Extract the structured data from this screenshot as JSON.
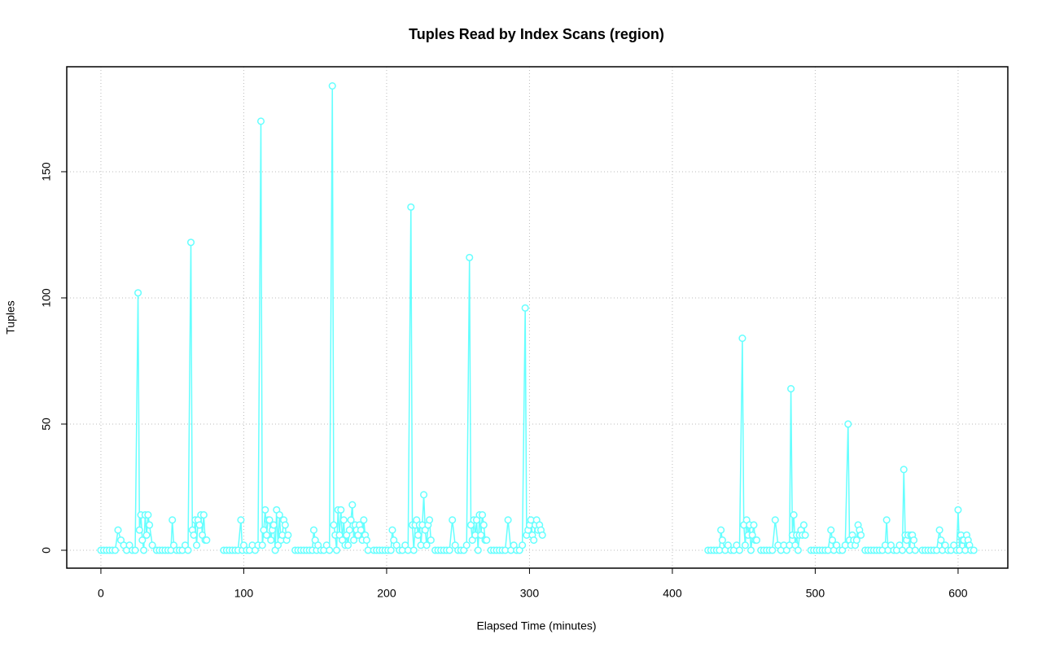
{
  "chart_data": {
    "type": "line",
    "title": "Tuples Read by Index Scans (region)",
    "x_label": "Elapsed Time (minutes)",
    "y_label": "Tuples",
    "xlim": [
      -23.9,
      634.8
    ],
    "ylim": [
      -7.1,
      191.6
    ],
    "xticks": [
      0,
      100,
      200,
      300,
      400,
      500,
      600
    ],
    "yticks": [
      0,
      50,
      100,
      150
    ],
    "grid": true,
    "series": [
      {
        "color": "#66ffff",
        "x": [
          0,
          2,
          4,
          6,
          8,
          10,
          12,
          14,
          16,
          18,
          20,
          22,
          24,
          26,
          27,
          28,
          29,
          30,
          31,
          32,
          33,
          34,
          36,
          37,
          39,
          41,
          43,
          45,
          47,
          49,
          50,
          51,
          53,
          55,
          57,
          59,
          61,
          63,
          64,
          65,
          66,
          67,
          68,
          69,
          70,
          71,
          72,
          73,
          74,
          75,
          86,
          88,
          90,
          92,
          94,
          96,
          98,
          99,
          100,
          102,
          104,
          106,
          108,
          110,
          112,
          113,
          114,
          115,
          116,
          117,
          118,
          119,
          120,
          121,
          122,
          123,
          124,
          125,
          126,
          127,
          128,
          129,
          130,
          131,
          134,
          136,
          138,
          140,
          142,
          144,
          146,
          148,
          149,
          150,
          151,
          152,
          154,
          156,
          158,
          160,
          162,
          163,
          164,
          165,
          166,
          167,
          168,
          169,
          170,
          171,
          172,
          173,
          174,
          175,
          176,
          177,
          178,
          179,
          180,
          181,
          182,
          183,
          184,
          185,
          186,
          187,
          190,
          191,
          193,
          195,
          197,
          199,
          201,
          203,
          204,
          205,
          207,
          209,
          211,
          213,
          215,
          217,
          218,
          219,
          220,
          221,
          222,
          223,
          224,
          225,
          226,
          227,
          228,
          229,
          230,
          231,
          233,
          234,
          236,
          238,
          240,
          242,
          244,
          246,
          248,
          250,
          252,
          254,
          256,
          258,
          259,
          260,
          261,
          262,
          263,
          264,
          265,
          266,
          267,
          268,
          269,
          270,
          272,
          273,
          275,
          277,
          279,
          281,
          283,
          285,
          287,
          289,
          291,
          293,
          295,
          297,
          298,
          299,
          300,
          301,
          302,
          303,
          304,
          305,
          306,
          307,
          308,
          309,
          370,
          425,
          427,
          429,
          431,
          433,
          434,
          435,
          437,
          439,
          441,
          443,
          445,
          447,
          449,
          450,
          451,
          452,
          453,
          454,
          455,
          456,
          457,
          458,
          459,
          460,
          462,
          464,
          466,
          468,
          470,
          472,
          474,
          476,
          478,
          480,
          482,
          483,
          484,
          485,
          486,
          487,
          488,
          489,
          490,
          491,
          492,
          493,
          495,
          497,
          499,
          501,
          503,
          505,
          507,
          509,
          511,
          512,
          513,
          515,
          517,
          519,
          521,
          523,
          524,
          525,
          526,
          527,
          528,
          529,
          530,
          531,
          532,
          533,
          535,
          537,
          539,
          541,
          543,
          545,
          547,
          549,
          550,
          551,
          553,
          555,
          557,
          559,
          561,
          562,
          563,
          564,
          565,
          566,
          567,
          568,
          569,
          570,
          573,
          575,
          577,
          579,
          581,
          583,
          585,
          587,
          588,
          589,
          591,
          593,
          595,
          597,
          599,
          600,
          601,
          602,
          603,
          604,
          605,
          606,
          607,
          608,
          609,
          611
        ],
        "values": [
          0,
          0,
          0,
          0,
          0,
          0,
          8,
          4,
          2,
          0,
          2,
          0,
          0,
          102,
          8,
          14,
          4,
          0,
          14,
          6,
          14,
          10,
          2,
          null,
          0,
          0,
          0,
          0,
          0,
          0,
          12,
          2,
          0,
          0,
          0,
          2,
          0,
          122,
          8,
          6,
          12,
          2,
          12,
          10,
          14,
          6,
          14,
          4,
          4,
          null,
          0,
          0,
          0,
          0,
          0,
          0,
          12,
          0,
          2,
          0,
          0,
          2,
          0,
          2,
          170,
          2,
          8,
          16,
          6,
          12,
          12,
          4,
          8,
          10,
          0,
          16,
          2,
          14,
          4,
          6,
          12,
          10,
          4,
          6,
          null,
          0,
          0,
          0,
          0,
          0,
          0,
          0,
          8,
          4,
          0,
          2,
          0,
          0,
          2,
          0,
          184,
          10,
          6,
          0,
          16,
          6,
          16,
          4,
          12,
          2,
          6,
          2,
          8,
          12,
          18,
          4,
          10,
          8,
          6,
          10,
          8,
          4,
          12,
          6,
          4,
          0,
          null,
          0,
          0,
          0,
          0,
          0,
          0,
          0,
          8,
          4,
          2,
          0,
          0,
          2,
          0,
          136,
          10,
          0,
          10,
          12,
          6,
          10,
          2,
          10,
          22,
          8,
          2,
          10,
          12,
          4,
          null,
          0,
          0,
          0,
          0,
          0,
          0,
          12,
          2,
          0,
          0,
          0,
          2,
          116,
          10,
          4,
          12,
          6,
          12,
          0,
          14,
          6,
          14,
          10,
          4,
          4,
          null,
          0,
          0,
          0,
          0,
          0,
          0,
          12,
          0,
          2,
          0,
          0,
          2,
          96,
          6,
          8,
          10,
          12,
          6,
          4,
          10,
          12,
          8,
          10,
          8,
          6,
          null,
          0,
          0,
          0,
          0,
          0,
          8,
          4,
          0,
          2,
          0,
          0,
          2,
          0,
          84,
          10,
          2,
          12,
          6,
          10,
          0,
          6,
          10,
          4,
          4,
          null,
          0,
          0,
          0,
          0,
          0,
          12,
          2,
          0,
          2,
          0,
          2,
          64,
          6,
          14,
          2,
          6,
          0,
          6,
          8,
          6,
          10,
          6,
          null,
          0,
          0,
          0,
          0,
          0,
          0,
          0,
          8,
          4,
          0,
          2,
          0,
          0,
          2,
          50,
          4,
          2,
          6,
          4,
          2,
          4,
          10,
          8,
          6,
          null,
          0,
          0,
          0,
          0,
          0,
          0,
          0,
          2,
          12,
          0,
          2,
          0,
          0,
          2,
          0,
          32,
          6,
          4,
          6,
          0,
          6,
          6,
          4,
          0,
          null,
          0,
          0,
          0,
          0,
          0,
          0,
          8,
          4,
          0,
          2,
          0,
          0,
          2,
          0,
          16,
          0,
          6,
          4,
          4,
          0,
          6,
          4,
          2,
          0,
          0
        ]
      }
    ]
  }
}
